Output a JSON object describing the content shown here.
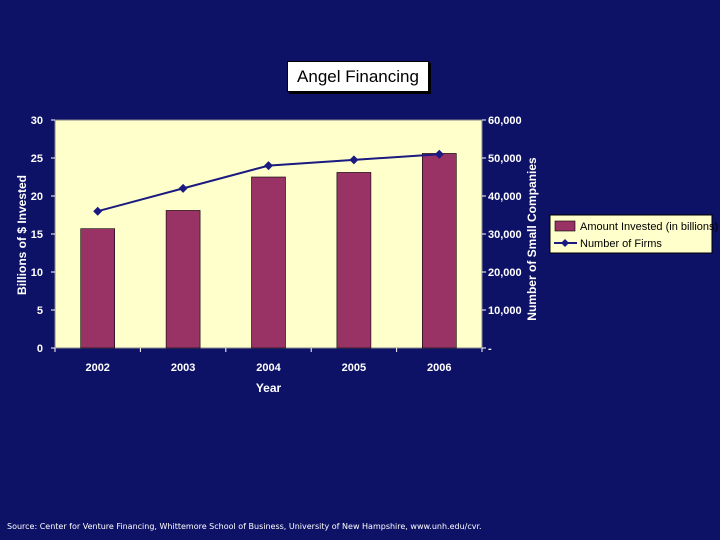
{
  "chart_data": {
    "type": "bar+line",
    "title": "Angel Financing",
    "xlabel": "Year",
    "ylabel_left": "Billions of $ Invested",
    "ylabel_right": "Number of Small Companies",
    "categories": [
      "2002",
      "2003",
      "2004",
      "2005",
      "2006"
    ],
    "ylim_left": [
      0,
      30
    ],
    "ylim_right": [
      0,
      60000
    ],
    "left_ticks": [
      "0",
      "5",
      "10",
      "15",
      "20",
      "25",
      "30"
    ],
    "right_ticks": [
      "-",
      "10,000",
      "20,000",
      "30,000",
      "40,000",
      "50,000",
      "60,000"
    ],
    "grid": false,
    "legend_position": "right",
    "series": [
      {
        "name": "Amount Invested (in billions)",
        "type": "bar",
        "axis": "left",
        "values": [
          15.7,
          18.1,
          22.5,
          23.1,
          25.6
        ]
      },
      {
        "name": "Number of Firms",
        "type": "line",
        "axis": "right",
        "values": [
          36000,
          42000,
          48000,
          49500,
          51000
        ]
      }
    ],
    "colors": {
      "background": "#0d1266",
      "plot": "#ffffcc",
      "bar": "#993366",
      "line": "#1a1a80"
    }
  },
  "source": "Source: Center for Venture Financing, Whittemore School of Business, University of New Hampshire, www.unh.edu/cvr."
}
